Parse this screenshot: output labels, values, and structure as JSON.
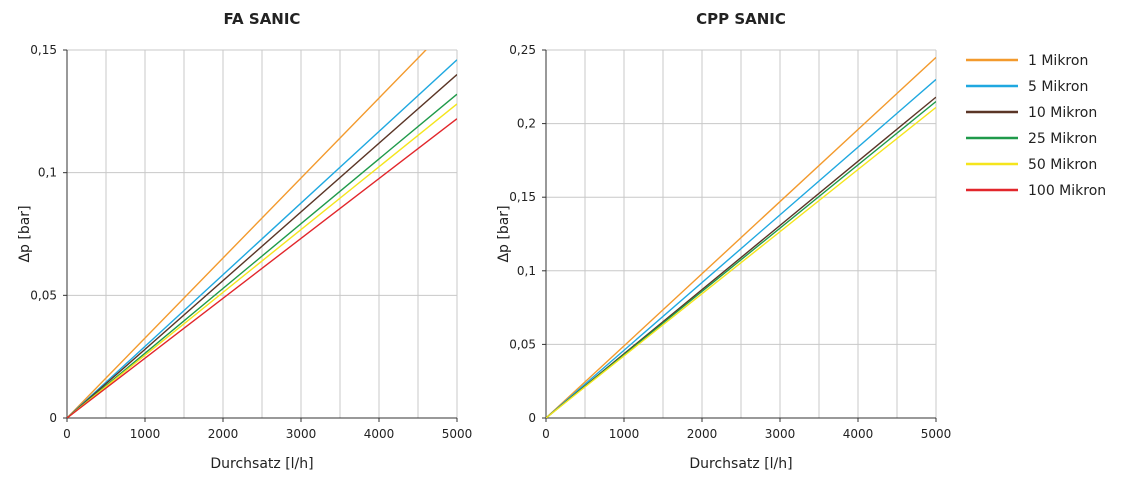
{
  "chart_data": [
    {
      "type": "line",
      "title": "FA SANIC",
      "xlabel": "Durchsatz [l/h]",
      "ylabel": "Δp  [bar]",
      "xlim": [
        0,
        5000
      ],
      "ylim": [
        0,
        0.15
      ],
      "xticks": [
        "0",
        "1000",
        "2000",
        "3000",
        "4000",
        "5000"
      ],
      "yticks": [
        "0",
        "0,05",
        "0,1",
        "0,15"
      ],
      "grid": true,
      "x": [
        0,
        5000
      ],
      "series": [
        {
          "name": "1 Mikron",
          "color": "#f39a2d",
          "values": [
            0,
            0.163
          ]
        },
        {
          "name": "5 Mikron",
          "color": "#1fa8e0",
          "values": [
            0,
            0.146
          ]
        },
        {
          "name": "10 Mikron",
          "color": "#5a3526",
          "values": [
            0,
            0.14
          ]
        },
        {
          "name": "25 Mikron",
          "color": "#1f9a4a",
          "values": [
            0,
            0.132
          ]
        },
        {
          "name": "50 Mikron",
          "color": "#f5e51c",
          "values": [
            0,
            0.128
          ]
        },
        {
          "name": "100 Mikron",
          "color": "#e2262b",
          "values": [
            0,
            0.122
          ]
        }
      ]
    },
    {
      "type": "line",
      "title": "CPP SANIC",
      "xlabel": "Durchsatz [l/h]",
      "ylabel": "Δp  [bar]",
      "xlim": [
        0,
        5000
      ],
      "ylim": [
        0,
        0.25
      ],
      "xticks": [
        "0",
        "1000",
        "2000",
        "3000",
        "4000",
        "5000"
      ],
      "yticks": [
        "0",
        "0,05",
        "0,1",
        "0,15",
        "0,2",
        "0,25"
      ],
      "grid": true,
      "legend": "right",
      "x": [
        0,
        5000
      ],
      "series": [
        {
          "name": "1 Mikron",
          "color": "#f39a2d",
          "values": [
            0,
            0.245
          ]
        },
        {
          "name": "5 Mikron",
          "color": "#1fa8e0",
          "values": [
            0,
            0.23
          ]
        },
        {
          "name": "10 Mikron",
          "color": "#5a3526",
          "values": [
            0,
            0.218
          ]
        },
        {
          "name": "25 Mikron",
          "color": "#1f9a4a",
          "values": [
            0,
            0.215
          ]
        },
        {
          "name": "50 Mikron",
          "color": "#f5e51c",
          "values": [
            0,
            0.211
          ]
        }
      ]
    }
  ],
  "legend": {
    "items": [
      {
        "label": "1 Mikron",
        "color": "#f39a2d"
      },
      {
        "label": "5 Mikron",
        "color": "#1fa8e0"
      },
      {
        "label": "10 Mikron",
        "color": "#5a3526"
      },
      {
        "label": "25 Mikron",
        "color": "#1f9a4a"
      },
      {
        "label": "50 Mikron",
        "color": "#f5e51c"
      },
      {
        "label": "100 Mikron",
        "color": "#e2262b"
      }
    ]
  }
}
